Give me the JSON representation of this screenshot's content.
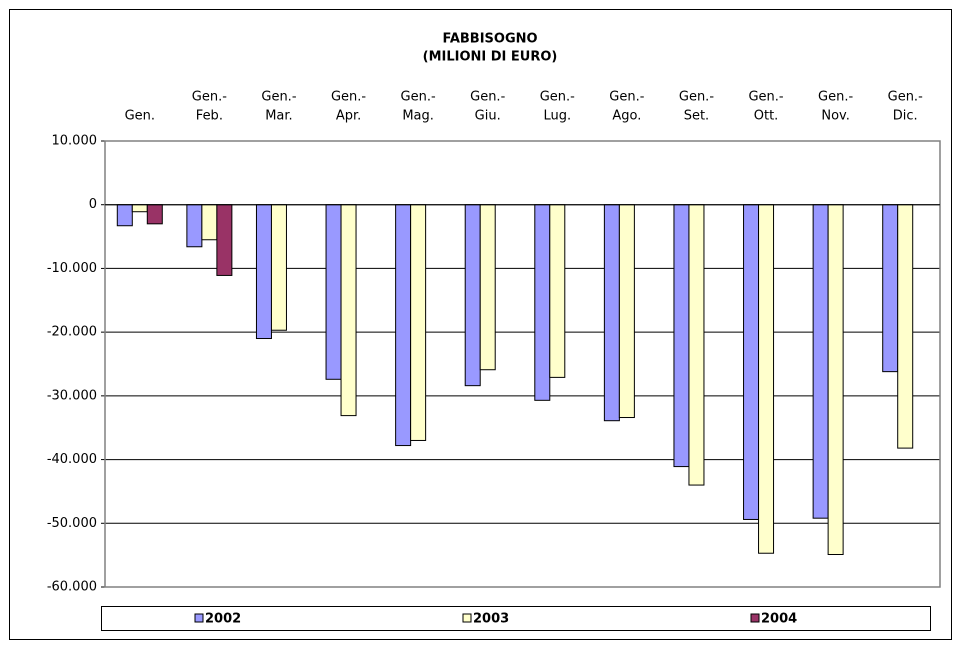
{
  "chart_data": {
    "type": "bar",
    "title": "FABBISOGNO",
    "subtitle": "(MILIONI DI EURO)",
    "categories": [
      [
        "Gen."
      ],
      [
        "Gen.-",
        "Feb."
      ],
      [
        "Gen.-",
        "Mar."
      ],
      [
        "Gen.-",
        "Apr."
      ],
      [
        "Gen.-",
        "Mag."
      ],
      [
        "Gen.-",
        "Giu."
      ],
      [
        "Gen.-",
        "Lug."
      ],
      [
        "Gen.-",
        "Ago."
      ],
      [
        "Gen.-",
        "Set."
      ],
      [
        "Gen.-",
        "Ott."
      ],
      [
        "Gen.-",
        "Nov."
      ],
      [
        "Gen.-",
        "Dic."
      ]
    ],
    "series": [
      {
        "name": "2002",
        "color": "#9999ff",
        "values": [
          -3300,
          -6600,
          -21000,
          -27400,
          -37800,
          -28400,
          -30700,
          -33900,
          -41100,
          -49400,
          -49200,
          -26200
        ]
      },
      {
        "name": "2003",
        "color": "#ffffcc",
        "values": [
          -1100,
          -5500,
          -19700,
          -33100,
          -37000,
          -25900,
          -27100,
          -33400,
          -44000,
          -54700,
          -54900,
          -38200
        ]
      },
      {
        "name": "2004",
        "color": "#993366",
        "values": [
          -3000,
          -11100,
          null,
          null,
          null,
          null,
          null,
          null,
          null,
          null,
          null,
          null
        ]
      }
    ],
    "ylim": [
      -60000,
      10000
    ],
    "yticks": [
      {
        "value": 10000,
        "label": "10.000"
      },
      0,
      {
        "value": -10000,
        "label": "-10.000"
      },
      {
        "value": -20000,
        "label": "-20.000"
      },
      {
        "value": -30000,
        "label": "-30.000"
      },
      {
        "value": -40000,
        "label": "-40.000"
      },
      {
        "value": -50000,
        "label": "-50.000"
      },
      {
        "value": -60000,
        "label": "-60.000"
      }
    ],
    "grid": true,
    "legend": "bottom"
  }
}
